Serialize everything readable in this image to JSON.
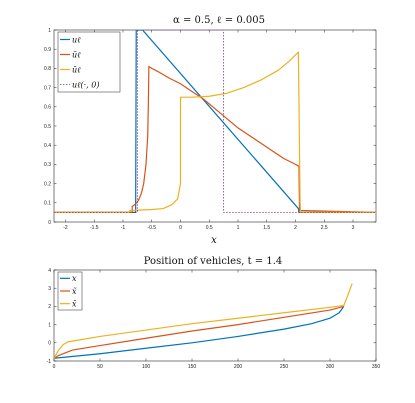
{
  "chart_data": [
    {
      "type": "line",
      "title": "α = 0.5, ℓ = 0.005",
      "xlabel": "x",
      "ylabel": "",
      "xlim": [
        -2.2,
        3.4
      ],
      "ylim": [
        0,
        1
      ],
      "grid": false,
      "legend_placement": "top-left",
      "xticks": [
        -2,
        -1.5,
        -1,
        -0.5,
        0,
        0.5,
        1,
        1.5,
        2,
        2.5,
        3
      ],
      "yticks": [
        0,
        0.1,
        0.2,
        0.3,
        0.4,
        0.5,
        0.6,
        0.7,
        0.8,
        0.9,
        1
      ],
      "series": [
        {
          "name": "uℓ",
          "color": "#0072BD",
          "dash": "",
          "x": [
            -2.2,
            -0.78,
            -0.77,
            -0.66,
            2.05,
            2.06,
            3.4
          ],
          "y": [
            0.05,
            0.05,
            1.0,
            1.0,
            0.07,
            0.05,
            0.05
          ]
        },
        {
          "name": "ũℓ",
          "color": "#D95319",
          "dash": "",
          "x": [
            -2.2,
            -0.84,
            -0.84,
            -0.76,
            -0.72,
            -0.68,
            -0.64,
            -0.6,
            -0.57,
            -0.56,
            -0.55,
            -0.5,
            -0.4,
            -0.2,
            0.0,
            0.2,
            0.4,
            0.6,
            0.8,
            1.0,
            1.2,
            1.4,
            1.6,
            1.8,
            2.0,
            2.06,
            2.07,
            3.4
          ],
          "y": [
            0.05,
            0.05,
            0.08,
            0.1,
            0.12,
            0.15,
            0.2,
            0.3,
            0.45,
            0.6,
            0.81,
            0.8,
            0.785,
            0.75,
            0.72,
            0.68,
            0.64,
            0.59,
            0.54,
            0.49,
            0.45,
            0.41,
            0.37,
            0.33,
            0.3,
            0.29,
            0.06,
            0.05
          ]
        },
        {
          "name": "ūℓ",
          "color": "#EDB120",
          "dash": "",
          "x": [
            -2.2,
            -0.88,
            -0.88,
            -0.5,
            -0.3,
            -0.15,
            -0.05,
            0.0,
            0.0,
            0.2,
            0.5,
            0.8,
            1.1,
            1.4,
            1.7,
            1.9,
            2.05,
            2.08,
            2.09,
            3.4
          ],
          "y": [
            0.05,
            0.05,
            0.06,
            0.065,
            0.07,
            0.09,
            0.12,
            0.2,
            0.65,
            0.65,
            0.655,
            0.67,
            0.7,
            0.74,
            0.79,
            0.84,
            0.885,
            0.1,
            0.05,
            0.05
          ]
        },
        {
          "name": "uℓ(·, 0)",
          "color": "#7E2F8E",
          "dash": "1.5,1.5",
          "x": [
            -2.2,
            -0.75,
            -0.75,
            0.75,
            0.75,
            3.4
          ],
          "y": [
            0.05,
            0.05,
            1.0,
            1.0,
            0.05,
            0.05
          ]
        }
      ]
    },
    {
      "type": "line",
      "title": "Position of vehicles, t = 1.4",
      "xlabel": "",
      "ylabel": "",
      "xlim": [
        0,
        350
      ],
      "ylim": [
        -1,
        4
      ],
      "grid": false,
      "legend_placement": "top-left",
      "xticks": [
        0,
        50,
        100,
        150,
        200,
        250,
        300,
        350
      ],
      "yticks": [
        -1,
        0,
        1,
        2,
        3,
        4
      ],
      "series": [
        {
          "name": "x",
          "color": "#0072BD",
          "dash": "",
          "x": [
            0,
            50,
            100,
            150,
            200,
            250,
            280,
            300,
            310,
            315
          ],
          "y": [
            -0.85,
            -0.6,
            -0.3,
            0.0,
            0.35,
            0.75,
            1.05,
            1.35,
            1.65,
            2.0
          ]
        },
        {
          "name": "x̃",
          "color": "#D95319",
          "dash": "",
          "x": [
            0,
            5,
            20,
            50,
            100,
            150,
            200,
            250,
            300,
            315
          ],
          "y": [
            -0.85,
            -0.7,
            -0.4,
            -0.15,
            0.25,
            0.65,
            1.0,
            1.4,
            1.8,
            2.0
          ]
        },
        {
          "name": "x̄",
          "color": "#EDB120",
          "dash": "",
          "x": [
            0,
            5,
            10,
            15,
            50,
            100,
            150,
            200,
            250,
            300,
            315,
            320,
            324
          ],
          "y": [
            -0.85,
            -0.4,
            -0.1,
            0.05,
            0.35,
            0.7,
            1.05,
            1.35,
            1.65,
            1.95,
            2.05,
            2.7,
            3.25
          ]
        }
      ]
    }
  ]
}
